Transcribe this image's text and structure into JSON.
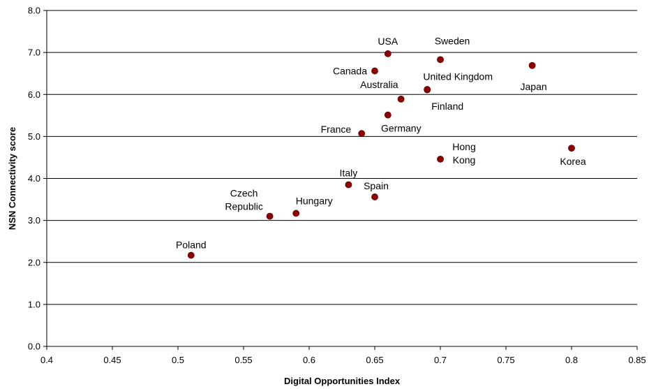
{
  "chart_data": {
    "type": "scatter",
    "xlabel": "Digital Opportunities Index",
    "ylabel": "NSN Connectivity score",
    "xlim": [
      0.4,
      0.85
    ],
    "ylim": [
      0.0,
      8.0
    ],
    "x_ticks": [
      "0.4",
      "0.45",
      "0.5",
      "0.55",
      "0.6",
      "0.65",
      "0.7",
      "0.75",
      "0.8",
      "0.85"
    ],
    "y_ticks": [
      "0.0",
      "1.0",
      "2.0",
      "3.0",
      "4.0",
      "5.0",
      "6.0",
      "7.0",
      "8.0"
    ],
    "grid": "horizontal",
    "marker_color": "#8b0000",
    "points": [
      {
        "label": [
          "USA"
        ],
        "x": 0.66,
        "y": 6.97
      },
      {
        "label": [
          "Sweden"
        ],
        "x": 0.7,
        "y": 6.83
      },
      {
        "label": [
          "Japan"
        ],
        "x": 0.77,
        "y": 6.69
      },
      {
        "label": [
          "Canada"
        ],
        "x": 0.65,
        "y": 6.56
      },
      {
        "label": [
          "United Kingdom"
        ],
        "x": 0.69,
        "y": 6.11
      },
      {
        "label": [
          "Australia"
        ],
        "x": 0.67,
        "y": 5.89
      },
      {
        "label": [
          "Finland"
        ],
        "x": 0.69,
        "y": 6.12
      },
      {
        "label": [
          "Germany"
        ],
        "x": 0.66,
        "y": 5.51
      },
      {
        "label": [
          "France"
        ],
        "x": 0.64,
        "y": 5.07
      },
      {
        "label": [
          "Hong",
          "Kong"
        ],
        "x": 0.7,
        "y": 4.46
      },
      {
        "label": [
          "Korea"
        ],
        "x": 0.8,
        "y": 4.72
      },
      {
        "label": [
          "Italy"
        ],
        "x": 0.63,
        "y": 3.85
      },
      {
        "label": [
          "Spain"
        ],
        "x": 0.65,
        "y": 3.56
      },
      {
        "label": [
          "Czech",
          "Republic"
        ],
        "x": 0.57,
        "y": 3.1
      },
      {
        "label": [
          "Hungary"
        ],
        "x": 0.59,
        "y": 3.17
      },
      {
        "label": [
          "Poland"
        ],
        "x": 0.51,
        "y": 2.17
      }
    ]
  }
}
